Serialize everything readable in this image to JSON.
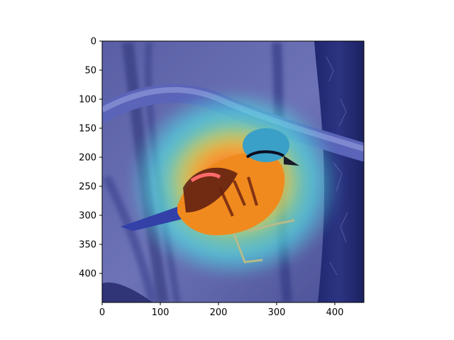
{
  "figure": {
    "background": "#ffffff",
    "image_extent": {
      "x": [
        0,
        450
      ],
      "y": [
        450,
        0
      ]
    },
    "xticks": [
      0,
      100,
      200,
      300,
      400
    ],
    "yticks": [
      0,
      50,
      100,
      150,
      200,
      250,
      300,
      350,
      400
    ],
    "x_tick_labels": [
      "0",
      "100",
      "200",
      "300",
      "400"
    ],
    "y_tick_labels": [
      "0",
      "50",
      "100",
      "150",
      "200",
      "250",
      "300",
      "350",
      "400"
    ],
    "overlay": {
      "type": "attention-heatmap",
      "colormap": "jet",
      "base_color": "#3a3f9c"
    },
    "subject": "bird-on-branch"
  }
}
